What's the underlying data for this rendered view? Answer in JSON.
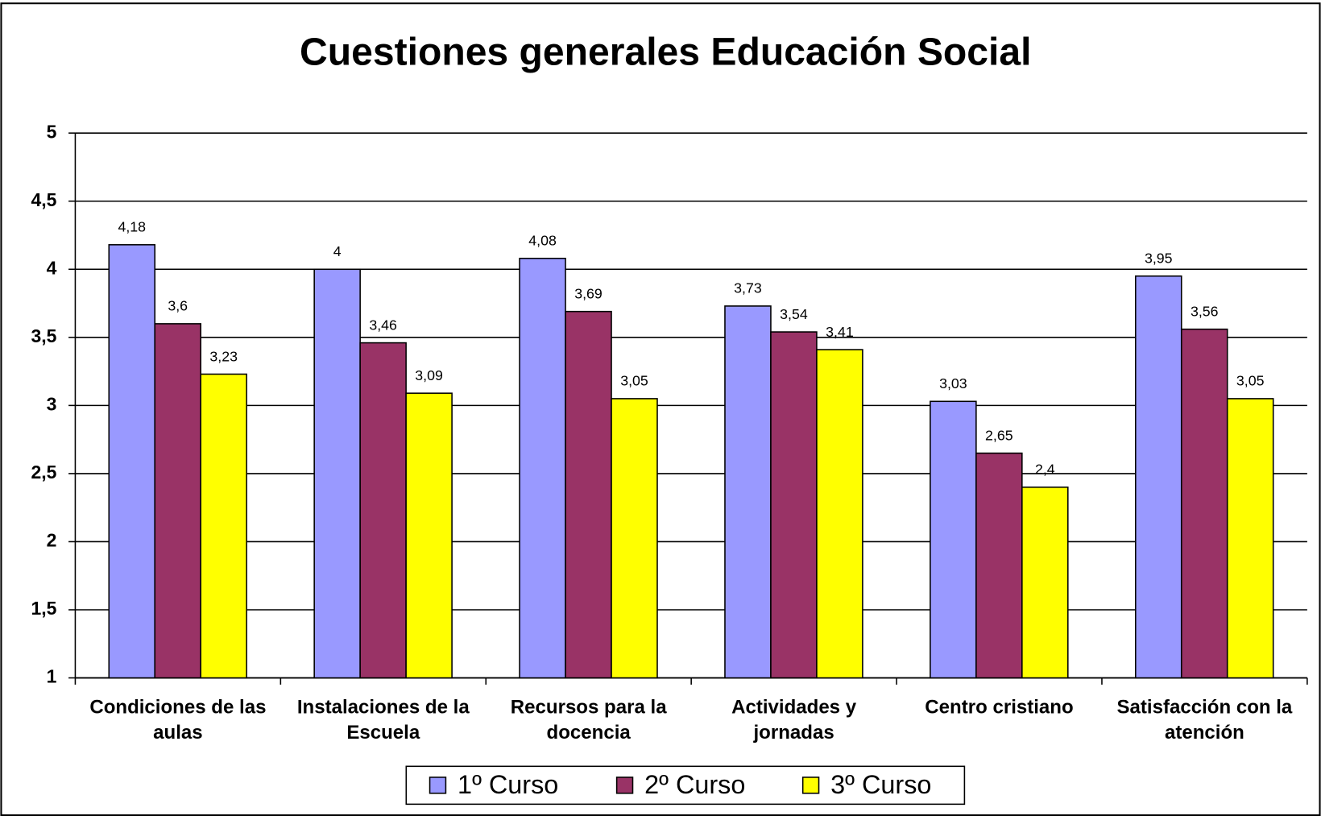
{
  "chart_data": {
    "type": "bar",
    "title": "Cuestiones generales Educación Social",
    "categories": [
      "Condiciones de las aulas",
      "Instalaciones de la Escuela",
      "Recursos para la docencia",
      "Actividades y jornadas",
      "Centro cristiano",
      "Satisfacción con la atención"
    ],
    "series": [
      {
        "name": "1º Curso",
        "color": "#9999ff",
        "values": [
          4.18,
          4,
          4.08,
          3.73,
          3.03,
          3.95
        ],
        "value_labels": [
          "4,18",
          "4",
          "4,08",
          "3,73",
          "3,03",
          "3,95"
        ]
      },
      {
        "name": "2º Curso",
        "color": "#993366",
        "values": [
          3.6,
          3.46,
          3.69,
          3.54,
          2.65,
          3.56
        ],
        "value_labels": [
          "3,6",
          "3,46",
          "3,69",
          "3,54",
          "2,65",
          "3,56"
        ]
      },
      {
        "name": "3º Curso",
        "color": "#ffff00",
        "values": [
          3.23,
          3.09,
          3.05,
          3.41,
          2.4,
          3.05
        ],
        "value_labels": [
          "3,23",
          "3,09",
          "3,05",
          "3,41",
          "2,4",
          "3,05"
        ]
      }
    ],
    "ylim": [
      1,
      5
    ],
    "yticks": [
      1,
      {
        "value": 1.5,
        "label": "1,5"
      },
      2,
      {
        "value": 2.5,
        "label": "2,5"
      },
      3,
      {
        "value": 3.5,
        "label": "3,5"
      },
      4,
      {
        "value": 4.5,
        "label": "4,5"
      },
      5
    ],
    "grid": true,
    "legend": "bottom"
  }
}
